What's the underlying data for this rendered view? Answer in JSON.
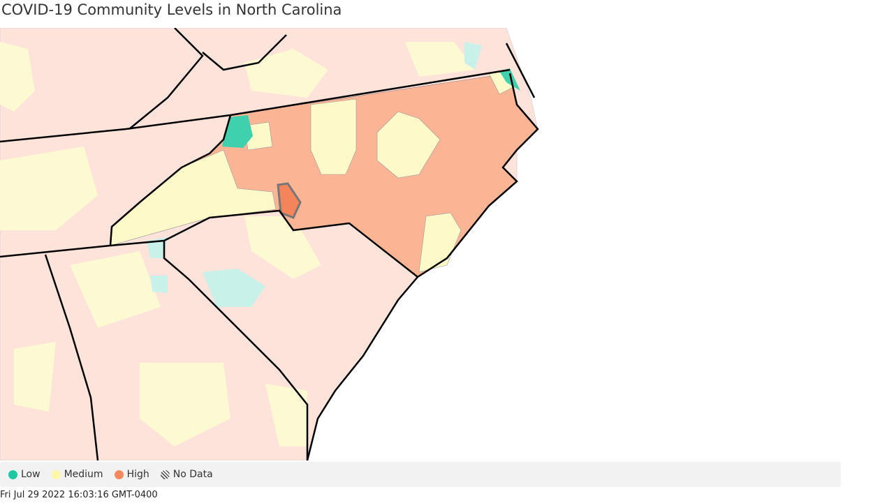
{
  "title": "COVID-19 Community Levels in North Carolina",
  "legend": [
    {
      "label": "Low",
      "color": "#1dc9a2"
    },
    {
      "label": "Medium",
      "color": "#fdf7a6"
    },
    {
      "label": "High",
      "color": "#f4895e"
    },
    {
      "label": "No Data",
      "color": "hatch"
    }
  ],
  "timestamp": "Fri Jul 29 2022 16:03:16 GMT-0400"
}
